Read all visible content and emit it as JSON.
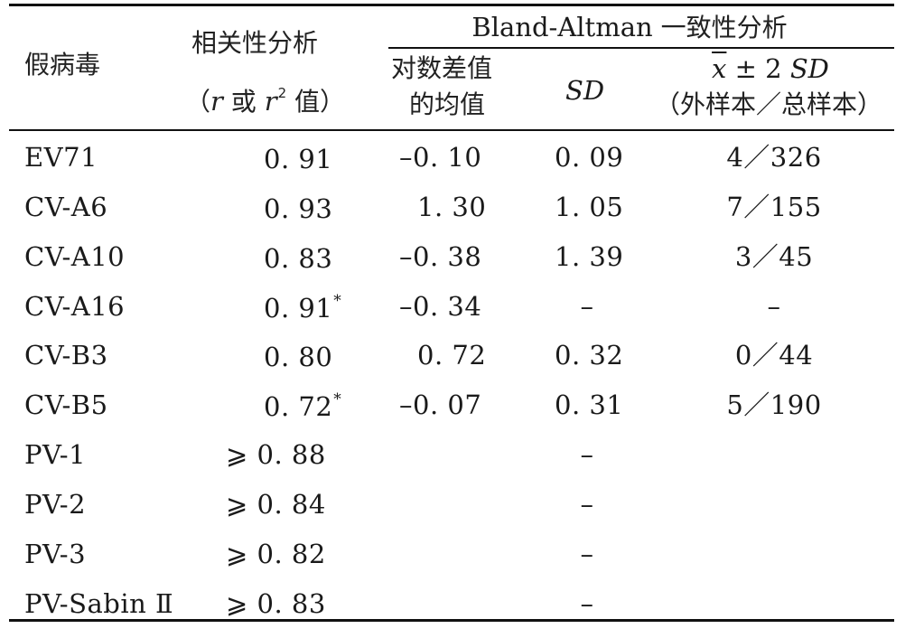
{
  "header": {
    "col_virus": "假病毒",
    "col_corr_title": "相关性分析",
    "col_corr_paren_open": "（",
    "col_corr_r": "r",
    "col_corr_or": " 或 ",
    "col_corr_r2": "r",
    "col_corr_r2_sup": "2",
    "col_corr_value": " 值）",
    "group_title_en": "Bland-Altman",
    "group_title_cn": " 一致性分析",
    "col_mean_line1": "对数差值",
    "col_mean_line2": "的均值",
    "col_sd": "SD",
    "col_ci_x": "x",
    "col_ci_rest": " ± 2 ",
    "col_ci_sd": "SD",
    "col_ci_line2": "（外样本／总样本）"
  },
  "rows": [
    {
      "virus": "EV71",
      "corr": "0. 91",
      "corr_star": "",
      "ge": "",
      "mean": "–0. 10",
      "sd": "0. 09",
      "ratio": "4／326"
    },
    {
      "virus": "CV-A6",
      "corr": "0. 93",
      "corr_star": "",
      "ge": "",
      "mean": "1. 30",
      "sd": "1. 05",
      "ratio": "7／155"
    },
    {
      "virus": "CV-A10",
      "corr": "0. 83",
      "corr_star": "",
      "ge": "",
      "mean": "–0. 38",
      "sd": "1. 39",
      "ratio": "3／45"
    },
    {
      "virus": "CV-A16",
      "corr": "0. 91",
      "corr_star": "*",
      "ge": "",
      "mean": "–0. 34",
      "sd": "–",
      "ratio": "–"
    },
    {
      "virus": "CV-B3",
      "corr": "0. 80",
      "corr_star": "",
      "ge": "",
      "mean": "0. 72",
      "sd": "0. 32",
      "ratio": "0／44"
    },
    {
      "virus": "CV-B5",
      "corr": "0. 72",
      "corr_star": "*",
      "ge": "",
      "mean": "–0. 07",
      "sd": "0. 31",
      "ratio": "5／190"
    },
    {
      "virus": "PV-1",
      "corr": "0. 88",
      "corr_star": "",
      "ge": "⩾",
      "mean": "",
      "sd": "–",
      "ratio": ""
    },
    {
      "virus": "PV-2",
      "corr": "0. 84",
      "corr_star": "",
      "ge": "⩾",
      "mean": "",
      "sd": "–",
      "ratio": ""
    },
    {
      "virus": "PV-3",
      "corr": "0. 82",
      "corr_star": "",
      "ge": "⩾",
      "mean": "",
      "sd": "–",
      "ratio": ""
    },
    {
      "virus": "PV-Sabin Ⅱ",
      "corr": "0. 83",
      "corr_star": "",
      "ge": "⩾",
      "mean": "",
      "sd": "–",
      "ratio": ""
    }
  ]
}
